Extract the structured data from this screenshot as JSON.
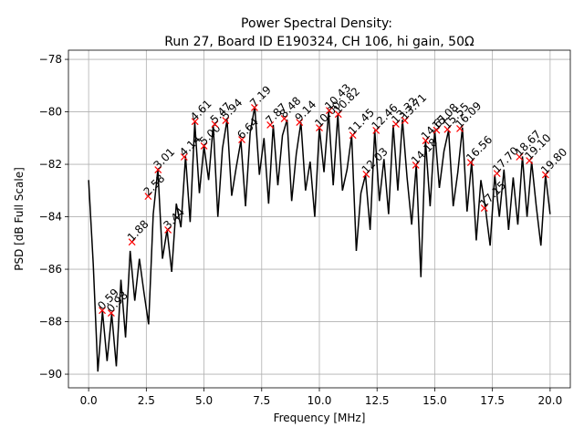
{
  "chart_data": {
    "type": "line",
    "title": "Power Spectral Density:",
    "subtitle": "Run 27, Board ID E190324, CH 106, hi gain, 50Ω",
    "x_label": "Frequency [MHz]",
    "y_label": "PSD [dB Full Scale]",
    "xlim": [
      -0.875,
      20.875
    ],
    "ylim": [
      -90.52,
      -77.65
    ],
    "xticks": [
      {
        "value": 0,
        "label": "0.0"
      },
      2.5,
      {
        "value": 5,
        "label": "5.0"
      },
      7.5,
      {
        "value": 10,
        "label": "10.0"
      },
      12.5,
      {
        "value": 15,
        "label": "15.0"
      },
      17.5,
      {
        "value": 20,
        "label": "20.0"
      }
    ],
    "yticks": [
      {
        "value": -90,
        "label": "−90"
      },
      {
        "value": -88,
        "label": "−88"
      },
      {
        "value": -86,
        "label": "−86"
      },
      {
        "value": -84,
        "label": "−84"
      },
      {
        "value": -82,
        "label": "−82"
      },
      {
        "value": -80,
        "label": "−80"
      },
      {
        "value": -78,
        "label": "−78"
      }
    ],
    "grid": true,
    "series": [
      {
        "color": "#000000",
        "x": [
          0.0,
          0.2,
          0.4,
          0.6,
          0.8,
          1.0,
          1.2,
          1.4,
          1.6,
          1.8,
          2.0,
          2.2,
          2.4,
          2.6,
          2.8,
          3.0,
          3.2,
          3.4,
          3.6,
          3.8,
          4.0,
          4.2,
          4.4,
          4.6,
          4.8,
          5.0,
          5.2,
          5.4,
          5.6,
          5.8,
          6.0,
          6.2,
          6.4,
          6.6,
          6.8,
          7.0,
          7.2,
          7.4,
          7.6,
          7.8,
          8.0,
          8.2,
          8.4,
          8.6,
          8.8,
          9.0,
          9.2,
          9.4,
          9.6,
          9.8,
          10.0,
          10.2,
          10.4,
          10.6,
          10.8,
          11.0,
          11.2,
          11.4,
          11.6,
          11.8,
          12.0,
          12.2,
          12.4,
          12.6,
          12.8,
          13.0,
          13.2,
          13.4,
          13.6,
          13.8,
          14.0,
          14.2,
          14.4,
          14.6,
          14.8,
          15.0,
          15.2,
          15.4,
          15.6,
          15.8,
          16.0,
          16.2,
          16.4,
          16.6,
          16.8,
          17.0,
          17.2,
          17.4,
          17.6,
          17.8,
          18.0,
          18.2,
          18.4,
          18.6,
          18.8,
          19.0,
          19.2,
          19.4,
          19.6,
          19.8,
          20.0
        ],
        "values": [
          -82.6,
          -85.8,
          -89.9,
          -87.6,
          -89.5,
          -87.7,
          -89.7,
          -86.4,
          -88.6,
          -85.3,
          -87.2,
          -85.6,
          -86.9,
          -88.1,
          -83.9,
          -82.2,
          -85.6,
          -84.5,
          -86.1,
          -83.5,
          -84.4,
          -81.7,
          -84.2,
          -80.4,
          -83.1,
          -81.3,
          -82.6,
          -80.5,
          -84.0,
          -81.4,
          -80.3,
          -83.2,
          -82.1,
          -81.1,
          -83.6,
          -80.8,
          -79.8,
          -82.4,
          -81.0,
          -83.5,
          -80.5,
          -82.8,
          -80.9,
          -80.3,
          -83.4,
          -81.6,
          -80.4,
          -83.0,
          -81.9,
          -84.0,
          -80.6,
          -82.3,
          -80.0,
          -82.8,
          -80.1,
          -83.0,
          -82.2,
          -80.9,
          -85.3,
          -83.1,
          -82.4,
          -84.5,
          -80.7,
          -83.4,
          -81.8,
          -83.9,
          -80.5,
          -83.0,
          -80.3,
          -82.5,
          -84.3,
          -82.0,
          -86.3,
          -81.1,
          -83.6,
          -80.7,
          -82.9,
          -81.5,
          -80.7,
          -83.6,
          -82.3,
          -80.6,
          -83.8,
          -81.9,
          -84.9,
          -82.6,
          -83.7,
          -85.1,
          -82.4,
          -84.0,
          -82.2,
          -84.5,
          -82.5,
          -84.3,
          -81.7,
          -84.0,
          -81.9,
          -83.6,
          -85.1,
          -82.4,
          -83.9
        ]
      }
    ],
    "peaks": {
      "color": "#ff0000",
      "x": [
        0.59,
        0.98,
        1.88,
        2.58,
        3.01,
        3.44,
        4.14,
        4.61,
        5.0,
        5.47,
        5.94,
        6.64,
        7.19,
        7.87,
        8.48,
        9.14,
        10.0,
        10.43,
        10.82,
        11.45,
        12.03,
        12.46,
        13.32,
        13.71,
        14.18,
        14.61,
        15.08,
        15.55,
        16.09,
        16.56,
        17.15,
        17.7,
        18.67,
        19.1,
        19.8
      ],
      "x_labels": [
        "0.59",
        "0.98",
        "1.88",
        "2.58",
        "3.01",
        "3.44",
        "4.14",
        "4.61",
        "5.00",
        "5.47",
        "5.94",
        "6.64",
        "7.19",
        "7.87",
        "8.48",
        "9.14",
        "10.00",
        "10.43",
        "10.82",
        "11.45",
        "12.03",
        "12.46",
        "13.32",
        "13.71",
        "14.18",
        "14.61",
        "15.08",
        "15.55",
        "16.09",
        "16.56",
        "17.15",
        "17.70",
        "18.67",
        "19.10",
        "19.80"
      ],
      "values": [
        -87.57,
        -87.67,
        -84.96,
        -83.22,
        -82.21,
        -84.5,
        -81.72,
        -80.37,
        -81.3,
        -80.47,
        -80.33,
        -81.06,
        -79.84,
        -80.5,
        -80.26,
        -80.4,
        -80.61,
        -79.95,
        -80.09,
        -80.89,
        -82.38,
        -80.71,
        -80.47,
        -80.33,
        -82.03,
        -81.1,
        -80.7,
        -80.67,
        -80.64,
        -81.93,
        -83.67,
        -82.35,
        -81.72,
        -81.86,
        -82.4
      ]
    }
  }
}
